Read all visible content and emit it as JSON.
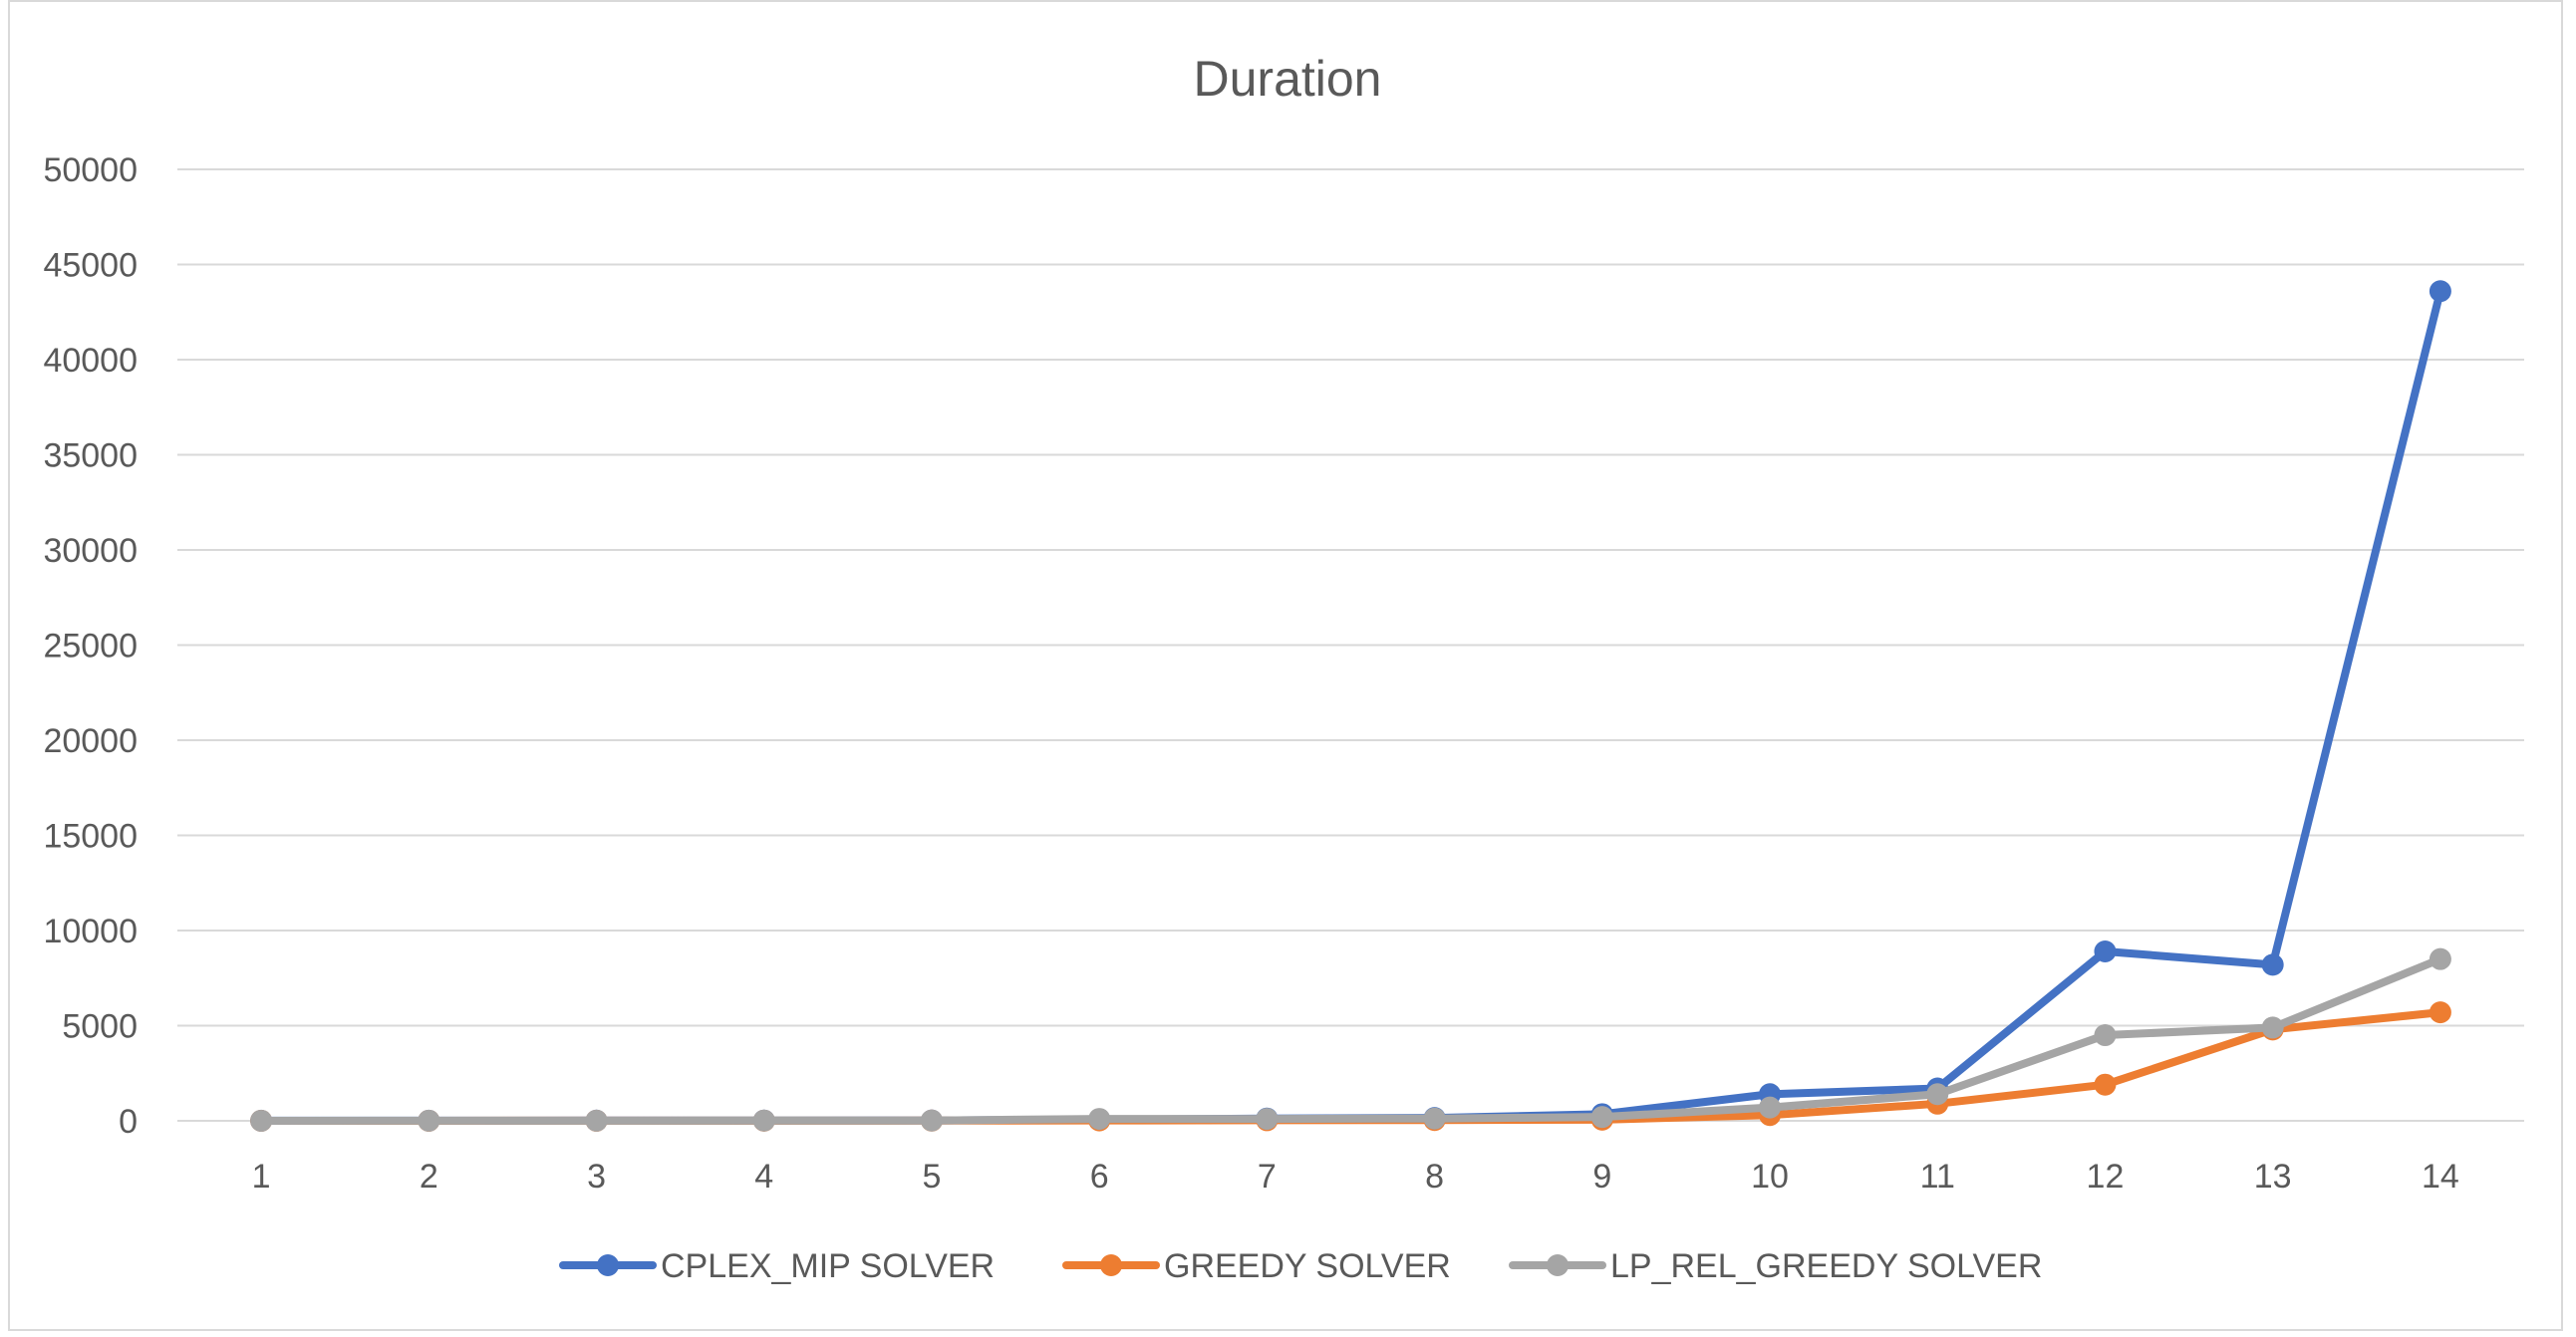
{
  "chart_data": {
    "type": "line",
    "title": "Duration",
    "xlabel": "",
    "ylabel": "",
    "categories": [
      "1",
      "2",
      "3",
      "4",
      "5",
      "6",
      "7",
      "8",
      "9",
      "10",
      "11",
      "12",
      "13",
      "14"
    ],
    "ylim": [
      0,
      50000
    ],
    "yticks": [
      0,
      5000,
      10000,
      15000,
      20000,
      25000,
      30000,
      35000,
      40000,
      45000,
      50000
    ],
    "grid": true,
    "legend_position": "bottom",
    "series": [
      {
        "name": "CPLEX_MIP SOLVER",
        "color": "#4472c4",
        "values": [
          5,
          8,
          10,
          15,
          20,
          60,
          120,
          150,
          350,
          1400,
          1700,
          8900,
          8200,
          43600
        ]
      },
      {
        "name": "GREEDY SOLVER",
        "color": "#ed7d31",
        "values": [
          2,
          3,
          5,
          8,
          10,
          20,
          30,
          40,
          60,
          300,
          900,
          1900,
          4800,
          5700
        ]
      },
      {
        "name": "LP_REL_GREEDY SOLVER",
        "color": "#a5a5a5",
        "values": [
          3,
          5,
          8,
          12,
          15,
          100,
          100,
          120,
          200,
          700,
          1400,
          4500,
          4900,
          8500
        ]
      }
    ]
  }
}
